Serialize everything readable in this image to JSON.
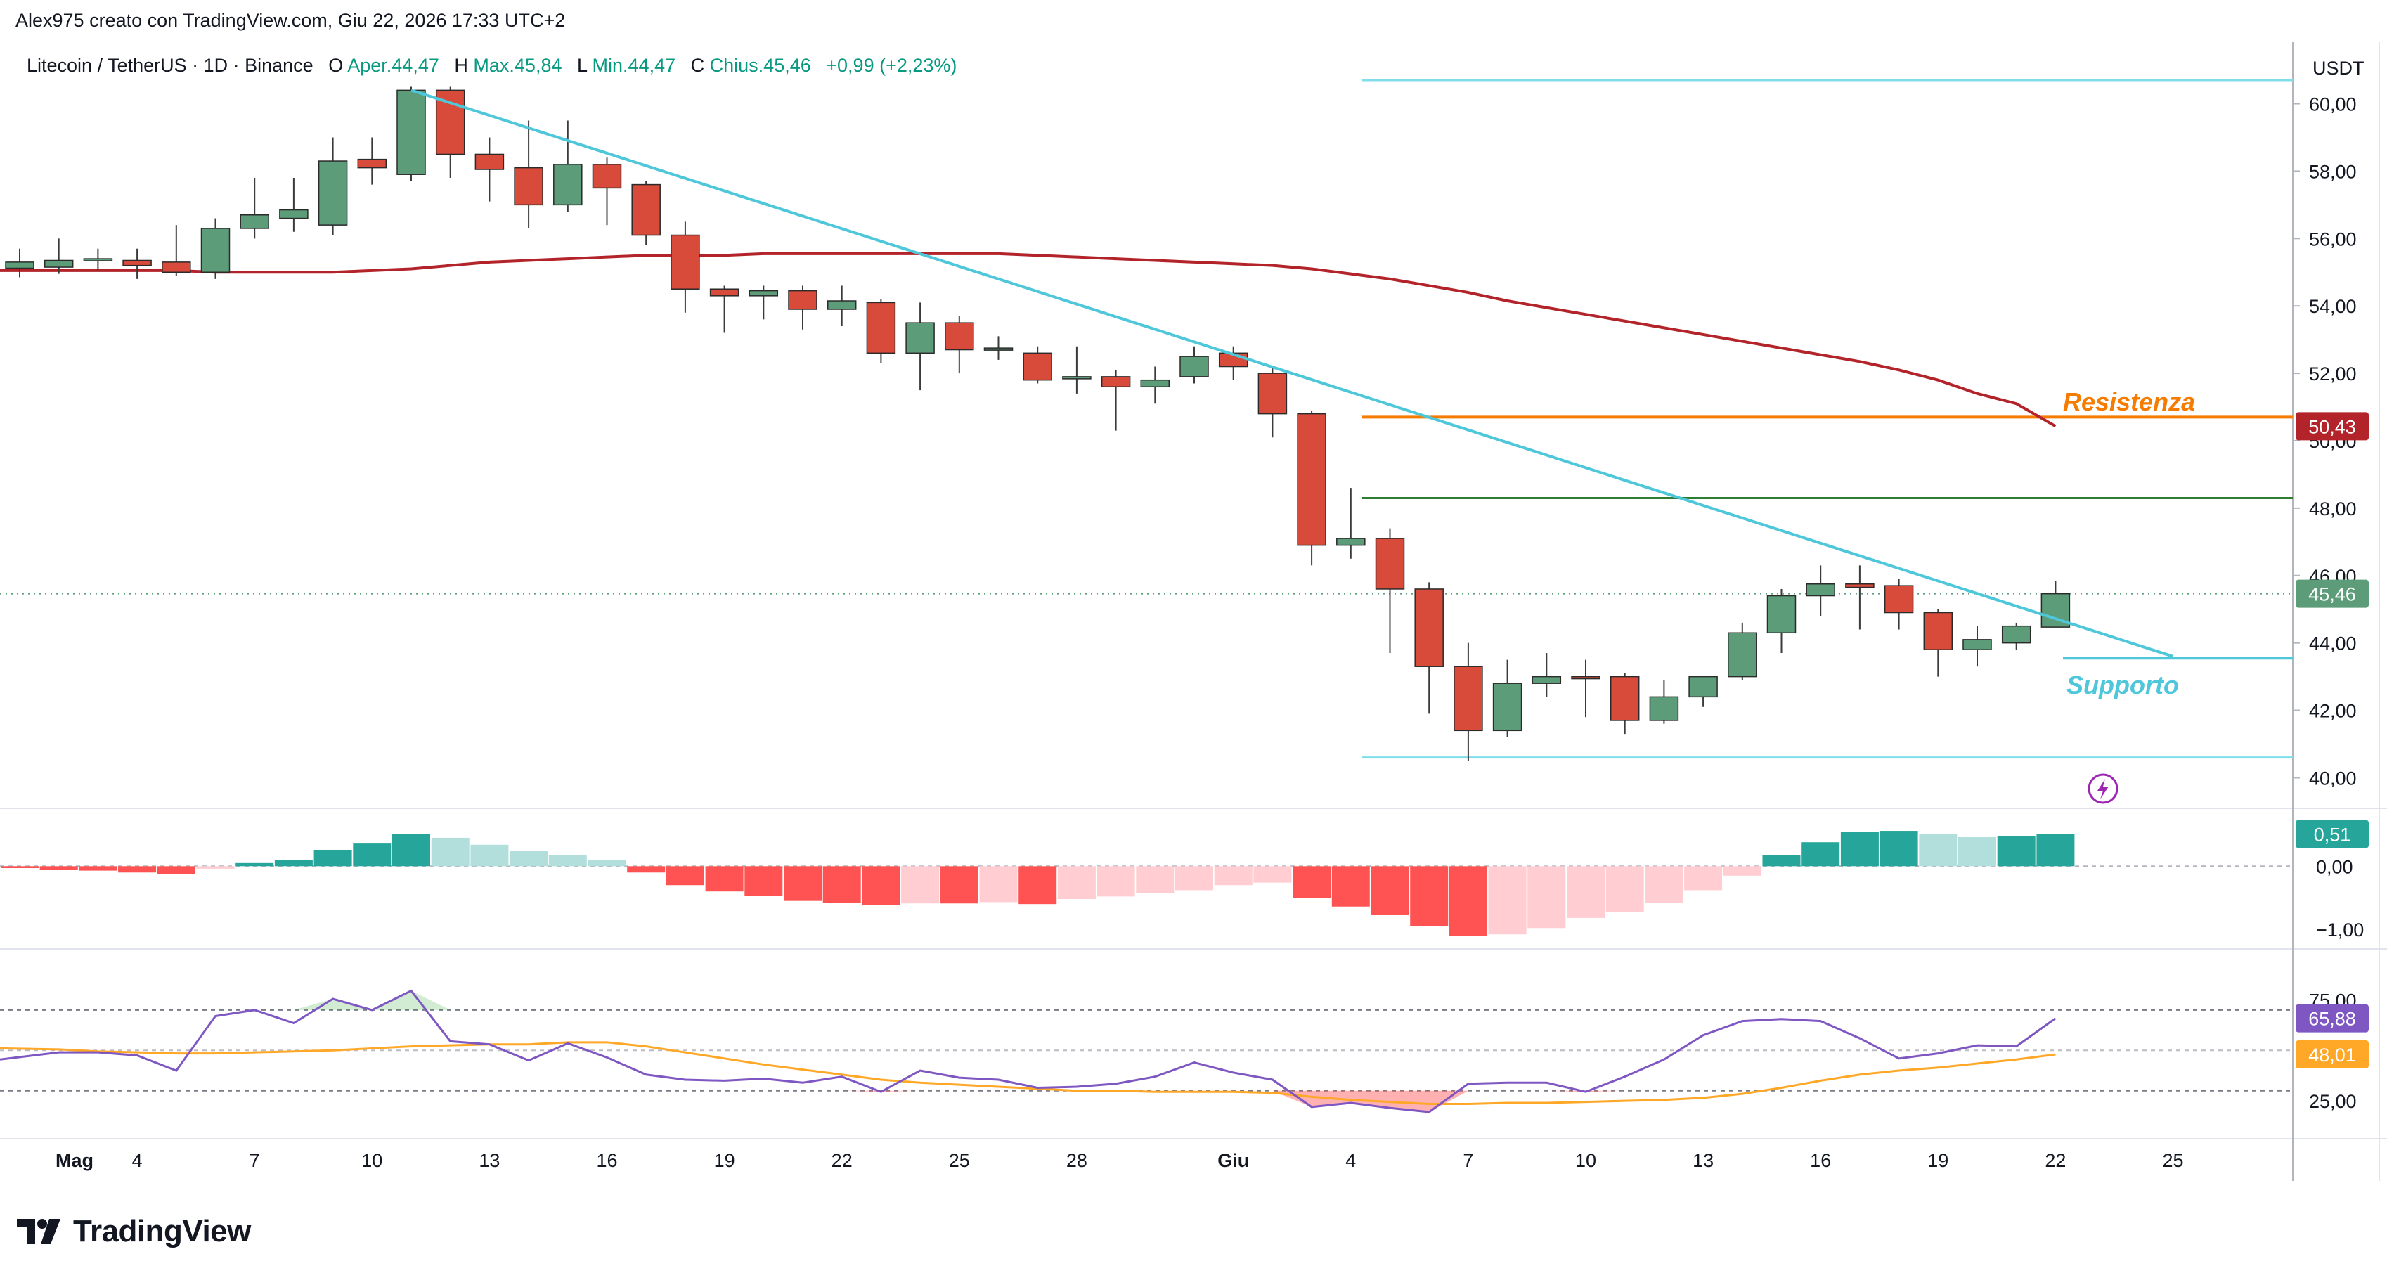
{
  "header": {
    "credit": "Alex975 creato con TradingView.com, Giu 22, 2026 17:33 UTC+2",
    "symbol": "Litecoin / TetherUS · 1D · Binance",
    "open_label": "O",
    "open_text": "Aper.44,47",
    "high_label": "H",
    "high_text": "Max.45,84",
    "low_label": "L",
    "low_text": "Min.44,47",
    "close_label": "C",
    "close_text": "Chius.45,46",
    "change_text": "+0,99 (+2,23%)"
  },
  "brand": {
    "name": "TradingView",
    "icon": "tradingview-logo-icon"
  },
  "colors": {
    "up": "#5d9c79",
    "down": "#d84a3a",
    "trend": "#4dc7d9",
    "ma": "#b2242a",
    "resistance": "#f57c00",
    "green_level": "#2e7d32",
    "range": "#80deea",
    "hist_up_strong": "#26a69a",
    "hist_up_weak": "#b2dfdb",
    "hist_down_strong": "#ff5252",
    "hist_down_weak": "#ffcdd2",
    "rsi": "#7e57c2",
    "rsi_ma": "#ffa726"
  },
  "price_axis": {
    "unit": "USDT",
    "ticks": [
      "60,00",
      "58,00",
      "56,00",
      "54,00",
      "52,00",
      "50,00",
      "48,00",
      "46,00",
      "44,00",
      "42,00",
      "40,00"
    ]
  },
  "macd_axis": {
    "ticks": [
      "0,00",
      "−1,00"
    ]
  },
  "rsi_axis": {
    "ticks": [
      "75,00",
      "25,00"
    ]
  },
  "time_axis": {
    "ticks": [
      "Mag",
      "4",
      "7",
      "10",
      "13",
      "16",
      "19",
      "22",
      "25",
      "28",
      "Giu",
      "4",
      "7",
      "10",
      "13",
      "16",
      "19",
      "22",
      "25"
    ]
  },
  "tags": {
    "ma": "50,43",
    "close": "45,46",
    "macd": "0,51",
    "rsi": "65,88",
    "rsi_ma": "48,01"
  },
  "annotations": {
    "resistance": "Resistenza",
    "support": "Supporto"
  },
  "chart_data": {
    "type": "candlestick",
    "x": [
      "01/05",
      "02/05",
      "03/05",
      "04/05",
      "05/05",
      "06/05",
      "07/05",
      "08/05",
      "09/05",
      "10/05",
      "11/05",
      "12/05",
      "13/05",
      "14/05",
      "15/05",
      "16/05",
      "17/05",
      "18/05",
      "19/05",
      "20/05",
      "21/05",
      "22/05",
      "23/05",
      "24/05",
      "25/05",
      "26/05",
      "27/05",
      "28/05",
      "29/05",
      "30/05",
      "31/05",
      "01/06",
      "02/06",
      "03/06",
      "04/06",
      "05/06",
      "06/06",
      "07/06",
      "08/06",
      "09/06",
      "10/06",
      "11/06",
      "12/06",
      "13/06",
      "14/06",
      "15/06",
      "16/06",
      "17/06",
      "18/06",
      "19/06",
      "20/06",
      "21/06",
      "22/06"
    ],
    "candles": [
      {
        "o": 55.12,
        "h": 55.7,
        "l": 54.85,
        "c": 55.3
      },
      {
        "o": 55.15,
        "h": 56.0,
        "l": 54.95,
        "c": 55.35
      },
      {
        "o": 55.35,
        "h": 55.7,
        "l": 55.05,
        "c": 55.4
      },
      {
        "o": 55.35,
        "h": 55.7,
        "l": 54.8,
        "c": 55.2
      },
      {
        "o": 55.3,
        "h": 56.4,
        "l": 54.9,
        "c": 55.0
      },
      {
        "o": 55.0,
        "h": 56.6,
        "l": 54.8,
        "c": 56.3
      },
      {
        "o": 56.3,
        "h": 57.8,
        "l": 56.0,
        "c": 56.7
      },
      {
        "o": 56.6,
        "h": 57.8,
        "l": 56.2,
        "c": 56.85
      },
      {
        "o": 56.4,
        "h": 59.0,
        "l": 56.1,
        "c": 58.3
      },
      {
        "o": 58.35,
        "h": 59.0,
        "l": 57.6,
        "c": 58.1
      },
      {
        "o": 57.9,
        "h": 60.5,
        "l": 57.7,
        "c": 60.4
      },
      {
        "o": 60.4,
        "h": 60.5,
        "l": 57.8,
        "c": 58.5
      },
      {
        "o": 58.5,
        "h": 59.0,
        "l": 57.1,
        "c": 58.05
      },
      {
        "o": 58.1,
        "h": 59.5,
        "l": 56.3,
        "c": 57.0
      },
      {
        "o": 57.0,
        "h": 59.5,
        "l": 56.8,
        "c": 58.2
      },
      {
        "o": 58.2,
        "h": 58.4,
        "l": 56.4,
        "c": 57.5
      },
      {
        "o": 57.6,
        "h": 57.7,
        "l": 55.8,
        "c": 56.1
      },
      {
        "o": 56.1,
        "h": 56.5,
        "l": 53.8,
        "c": 54.5
      },
      {
        "o": 54.5,
        "h": 54.6,
        "l": 53.2,
        "c": 54.3
      },
      {
        "o": 54.3,
        "h": 54.6,
        "l": 53.6,
        "c": 54.45
      },
      {
        "o": 54.45,
        "h": 54.6,
        "l": 53.3,
        "c": 53.9
      },
      {
        "o": 53.9,
        "h": 54.6,
        "l": 53.4,
        "c": 54.15
      },
      {
        "o": 54.1,
        "h": 54.2,
        "l": 52.3,
        "c": 52.6
      },
      {
        "o": 52.6,
        "h": 54.1,
        "l": 51.5,
        "c": 53.5
      },
      {
        "o": 53.5,
        "h": 53.7,
        "l": 52.0,
        "c": 52.7
      },
      {
        "o": 52.7,
        "h": 53.1,
        "l": 52.4,
        "c": 52.75
      },
      {
        "o": 52.6,
        "h": 52.8,
        "l": 51.7,
        "c": 51.8
      },
      {
        "o": 51.85,
        "h": 52.8,
        "l": 51.4,
        "c": 51.9
      },
      {
        "o": 51.9,
        "h": 52.1,
        "l": 50.3,
        "c": 51.6
      },
      {
        "o": 51.6,
        "h": 52.2,
        "l": 51.1,
        "c": 51.8
      },
      {
        "o": 51.9,
        "h": 52.8,
        "l": 51.7,
        "c": 52.5
      },
      {
        "o": 52.6,
        "h": 52.8,
        "l": 51.8,
        "c": 52.2
      },
      {
        "o": 52.0,
        "h": 52.2,
        "l": 50.1,
        "c": 50.8
      },
      {
        "o": 50.8,
        "h": 50.9,
        "l": 46.3,
        "c": 46.9
      },
      {
        "o": 46.9,
        "h": 48.6,
        "l": 46.5,
        "c": 47.1
      },
      {
        "o": 47.1,
        "h": 47.4,
        "l": 43.7,
        "c": 45.6
      },
      {
        "o": 45.6,
        "h": 45.8,
        "l": 41.9,
        "c": 43.3
      },
      {
        "o": 43.3,
        "h": 44.0,
        "l": 40.5,
        "c": 41.4
      },
      {
        "o": 41.4,
        "h": 43.5,
        "l": 41.2,
        "c": 42.8
      },
      {
        "o": 42.8,
        "h": 43.7,
        "l": 42.4,
        "c": 43.0
      },
      {
        "o": 43.0,
        "h": 43.5,
        "l": 41.8,
        "c": 42.95
      },
      {
        "o": 43.0,
        "h": 43.1,
        "l": 41.3,
        "c": 41.7
      },
      {
        "o": 41.7,
        "h": 42.9,
        "l": 41.6,
        "c": 42.4
      },
      {
        "o": 42.4,
        "h": 43.0,
        "l": 42.1,
        "c": 43.0
      },
      {
        "o": 43.0,
        "h": 44.6,
        "l": 42.9,
        "c": 44.3
      },
      {
        "o": 44.3,
        "h": 45.6,
        "l": 43.7,
        "c": 45.4
      },
      {
        "o": 45.4,
        "h": 46.3,
        "l": 44.8,
        "c": 45.75
      },
      {
        "o": 45.75,
        "h": 46.3,
        "l": 44.4,
        "c": 45.65
      },
      {
        "o": 45.7,
        "h": 45.9,
        "l": 44.4,
        "c": 44.9
      },
      {
        "o": 44.9,
        "h": 45.0,
        "l": 43.0,
        "c": 43.8
      },
      {
        "o": 43.8,
        "h": 44.5,
        "l": 43.3,
        "c": 44.1
      },
      {
        "o": 44.0,
        "h": 44.6,
        "l": 43.8,
        "c": 44.5
      },
      {
        "o": 44.47,
        "h": 45.84,
        "l": 44.47,
        "c": 45.46
      }
    ],
    "moving_average": [
      55.05,
      55.05,
      55.05,
      55.05,
      55.05,
      55.0,
      55.0,
      55.0,
      55.0,
      55.05,
      55.1,
      55.2,
      55.3,
      55.35,
      55.4,
      55.45,
      55.5,
      55.5,
      55.5,
      55.55,
      55.55,
      55.55,
      55.55,
      55.55,
      55.55,
      55.55,
      55.5,
      55.45,
      55.4,
      55.35,
      55.3,
      55.25,
      55.2,
      55.1,
      54.95,
      54.8,
      54.6,
      54.4,
      54.15,
      53.95,
      53.75,
      53.55,
      53.35,
      53.15,
      52.95,
      52.75,
      52.55,
      52.35,
      52.1,
      51.8,
      51.4,
      51.1,
      50.43
    ],
    "y_range": [
      39.3,
      61.2
    ],
    "trendline": {
      "from": {
        "x": "11/05",
        "y": 60.4
      },
      "to": {
        "x": "25/06",
        "y": 43.6
      }
    },
    "levels": {
      "top_range": 60.7,
      "bottom_range": 40.6,
      "resistance": 50.7,
      "green": 48.3,
      "support": 43.55
    },
    "macd_histogram": [
      -0.03,
      -0.06,
      -0.07,
      -0.1,
      -0.13,
      -0.04,
      0.05,
      0.1,
      0.26,
      0.37,
      0.51,
      0.45,
      0.34,
      0.24,
      0.18,
      0.1,
      -0.1,
      -0.3,
      -0.4,
      -0.47,
      -0.55,
      -0.58,
      -0.62,
      -0.59,
      -0.59,
      -0.57,
      -0.6,
      -0.52,
      -0.48,
      -0.43,
      -0.38,
      -0.3,
      -0.26,
      -0.5,
      -0.64,
      -0.77,
      -0.95,
      -1.1,
      -1.08,
      -0.98,
      -0.82,
      -0.73,
      -0.58,
      -0.38,
      -0.15,
      0.18,
      0.38,
      0.54,
      0.56,
      0.51,
      0.46,
      0.48,
      0.51
    ],
    "macd_range": [
      -1.2,
      0.75
    ],
    "rsi": [
      45.5,
      49.0,
      49.0,
      47.5,
      40.0,
      67.0,
      70.0,
      63.5,
      75.5,
      70.0,
      79.5,
      54.5,
      53.0,
      45.0,
      53.5,
      46.5,
      38.0,
      35.5,
      35.0,
      36.0,
      34.0,
      37.0,
      29.5,
      40.0,
      36.5,
      35.5,
      31.5,
      32.0,
      33.5,
      37.0,
      44.0,
      39.0,
      35.5,
      22.0,
      24.0,
      21.5,
      19.5,
      33.5,
      34.0,
      34.0,
      29.5,
      37.0,
      45.5,
      57.5,
      64.5,
      65.5,
      64.5,
      56.0,
      46.0,
      48.5,
      52.5,
      52.0,
      65.88
    ],
    "rsi_ma": [
      51.0,
      50.5,
      49.5,
      49.0,
      48.5,
      48.5,
      49.0,
      49.5,
      50.0,
      51.0,
      52.0,
      52.5,
      53.0,
      53.0,
      54.0,
      54.0,
      52.0,
      49.0,
      46.0,
      43.0,
      40.5,
      38.0,
      35.5,
      34.0,
      33.0,
      32.0,
      31.0,
      30.0,
      30.0,
      29.5,
      29.5,
      29.5,
      29.0,
      27.0,
      25.5,
      24.5,
      23.5,
      23.5,
      24.0,
      24.0,
      24.5,
      25.0,
      25.5,
      26.5,
      28.5,
      31.5,
      35.0,
      38.0,
      40.0,
      41.5,
      43.5,
      45.5,
      48.01
    ],
    "rsi_range": [
      8,
      95
    ],
    "rsi_levels": [
      70,
      50,
      30
    ]
  }
}
